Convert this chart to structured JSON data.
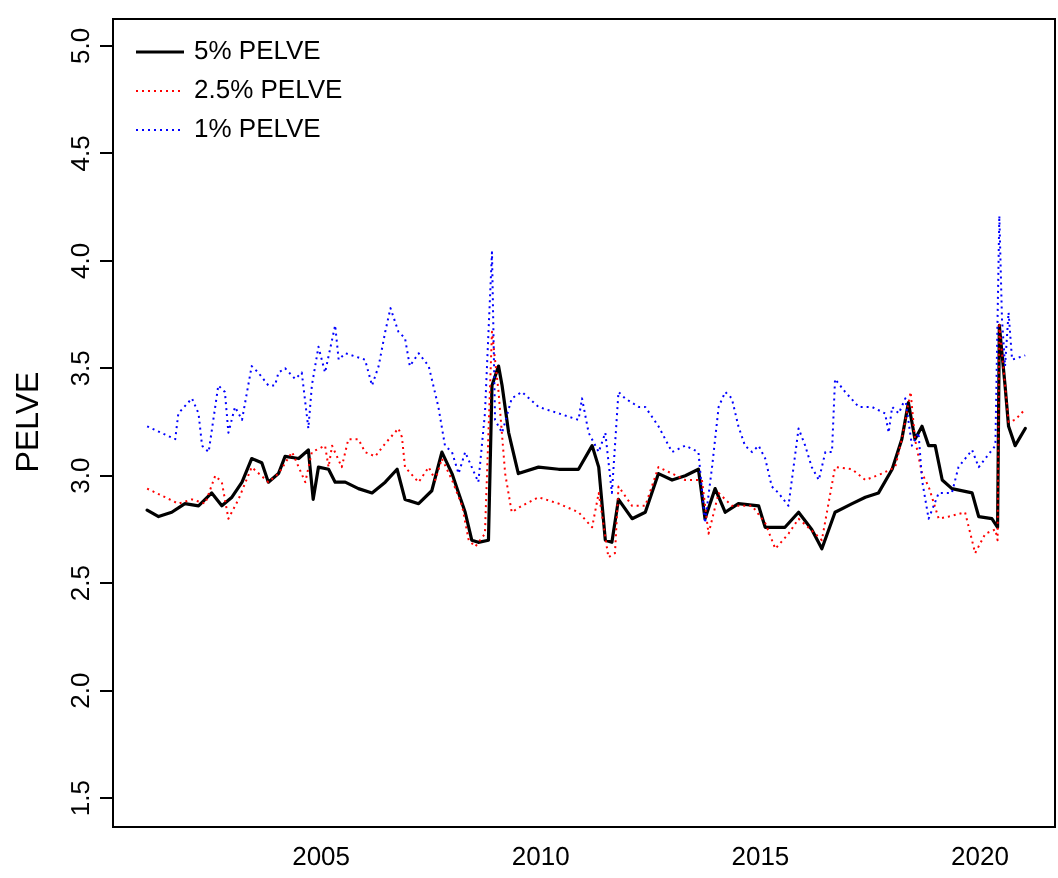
{
  "chart_data": {
    "type": "line",
    "ylabel": "PELVE",
    "xlim": [
      2000.24,
      2021.73
    ],
    "xticks": [
      2005,
      2010,
      2015,
      2020
    ],
    "ylim": [
      1.37,
      5.13
    ],
    "yticks": [
      1.5,
      {
        "value": 2,
        "label": "2.0"
      },
      2.5,
      {
        "value": 3,
        "label": "3.0"
      },
      3.5,
      {
        "value": 4,
        "label": "4.0"
      },
      4.5,
      {
        "value": 5,
        "label": "5.0"
      }
    ],
    "grid": false,
    "legend": "top left",
    "marker": "none",
    "series": [
      {
        "name": "5% PELVE",
        "color": "#000000",
        "line_style": "solid",
        "x": [
          2001.04,
          2001.3,
          2001.6,
          2001.9,
          2002.21,
          2002.51,
          2002.74,
          2002.97,
          2003.2,
          2003.42,
          2003.65,
          2003.8,
          2004.03,
          2004.18,
          2004.49,
          2004.71,
          2004.82,
          2004.94,
          2005.17,
          2005.32,
          2005.55,
          2005.85,
          2006.16,
          2006.46,
          2006.73,
          2006.91,
          2007.22,
          2007.52,
          2007.75,
          2007.98,
          2008.13,
          2008.28,
          2008.43,
          2008.58,
          2008.81,
          2008.89,
          2009.04,
          2009.12,
          2009.27,
          2009.49,
          2009.95,
          2010.41,
          2010.86,
          2011.17,
          2011.32,
          2011.47,
          2011.62,
          2011.77,
          2012.08,
          2012.38,
          2012.68,
          2012.99,
          2013.29,
          2013.59,
          2013.74,
          2013.97,
          2014.2,
          2014.5,
          2014.96,
          2015.11,
          2015.56,
          2015.87,
          2016.17,
          2016.4,
          2016.7,
          2017.09,
          2017.39,
          2017.69,
          2018.0,
          2018.22,
          2018.37,
          2018.52,
          2018.68,
          2018.83,
          2018.98,
          2019.14,
          2019.36,
          2019.82,
          2019.97,
          2020.27,
          2020.4,
          2020.44,
          2020.57,
          2020.65,
          2020.8,
          2021.03
        ],
        "values": [
          2.84,
          2.81,
          2.83,
          2.87,
          2.86,
          2.92,
          2.86,
          2.9,
          2.97,
          3.08,
          3.06,
          2.97,
          3.01,
          3.09,
          3.08,
          3.12,
          2.89,
          3.04,
          3.03,
          2.97,
          2.97,
          2.94,
          2.92,
          2.97,
          3.03,
          2.89,
          2.87,
          2.93,
          3.11,
          3.01,
          2.92,
          2.83,
          2.7,
          2.69,
          2.7,
          3.42,
          3.51,
          3.42,
          3.2,
          3.01,
          3.04,
          3.03,
          3.03,
          3.14,
          3.04,
          2.7,
          2.69,
          2.89,
          2.8,
          2.83,
          3.01,
          2.98,
          3.0,
          3.03,
          2.8,
          2.94,
          2.83,
          2.87,
          2.86,
          2.76,
          2.76,
          2.83,
          2.75,
          2.66,
          2.83,
          2.87,
          2.9,
          2.92,
          3.03,
          3.17,
          3.34,
          3.17,
          3.23,
          3.14,
          3.14,
          2.98,
          2.94,
          2.92,
          2.81,
          2.8,
          2.76,
          3.7,
          3.42,
          3.23,
          3.14,
          3.22
        ]
      },
      {
        "name": "2.5% PELVE",
        "color": "#ff0000",
        "line_style": "dotted",
        "x": [
          2001.04,
          2001.45,
          2001.75,
          2002.06,
          2002.36,
          2002.59,
          2002.74,
          2002.89,
          2003.12,
          2003.42,
          2003.8,
          2004.03,
          2004.34,
          2004.64,
          2004.79,
          2005.09,
          2005.17,
          2005.25,
          2005.47,
          2005.62,
          2005.85,
          2006.0,
          2006.23,
          2006.46,
          2006.76,
          2006.84,
          2006.91,
          2007.22,
          2007.45,
          2007.6,
          2007.75,
          2007.98,
          2008.21,
          2008.36,
          2008.51,
          2008.73,
          2008.89,
          2009.04,
          2009.19,
          2009.34,
          2009.57,
          2009.95,
          2010.41,
          2010.86,
          2011.17,
          2011.32,
          2011.54,
          2011.69,
          2011.77,
          2012.08,
          2012.38,
          2012.68,
          2012.99,
          2013.29,
          2013.67,
          2013.82,
          2014.05,
          2014.35,
          2014.81,
          2015.11,
          2015.34,
          2015.64,
          2015.87,
          2016.25,
          2016.4,
          2016.7,
          2017.09,
          2017.39,
          2017.77,
          2018.07,
          2018.22,
          2018.42,
          2018.52,
          2018.68,
          2018.83,
          2019.06,
          2019.29,
          2019.66,
          2019.89,
          2020.12,
          2020.35,
          2020.4,
          2020.44,
          2020.65,
          2020.8,
          2021.03
        ],
        "values": [
          2.94,
          2.9,
          2.87,
          2.89,
          2.87,
          3.0,
          2.97,
          2.8,
          2.89,
          3.04,
          2.97,
          3.01,
          3.11,
          2.97,
          3.11,
          3.14,
          3.04,
          3.14,
          3.04,
          3.17,
          3.17,
          3.11,
          3.09,
          3.15,
          3.22,
          3.18,
          3.04,
          2.97,
          3.04,
          2.98,
          3.08,
          2.98,
          2.86,
          2.7,
          2.67,
          2.73,
          3.67,
          3.39,
          3.01,
          2.83,
          2.86,
          2.9,
          2.87,
          2.83,
          2.76,
          2.92,
          2.62,
          2.64,
          2.95,
          2.86,
          2.86,
          3.04,
          3.01,
          2.98,
          2.98,
          2.73,
          2.92,
          2.86,
          2.86,
          2.78,
          2.66,
          2.73,
          2.8,
          2.73,
          2.7,
          3.04,
          3.03,
          2.98,
          3.01,
          3.04,
          3.17,
          3.39,
          3.17,
          3.01,
          2.95,
          2.8,
          2.81,
          2.83,
          2.64,
          2.73,
          2.75,
          2.7,
          3.7,
          3.25,
          3.26,
          3.31
        ]
      },
      {
        "name": "1% PELVE",
        "color": "#0000ff",
        "line_style": "dotted",
        "x": [
          2001.04,
          2001.68,
          2001.75,
          2002.06,
          2002.21,
          2002.29,
          2002.44,
          2002.66,
          2002.81,
          2002.89,
          2003.04,
          2003.2,
          2003.42,
          2003.57,
          2003.8,
          2003.95,
          2004.03,
          2004.18,
          2004.41,
          2004.56,
          2004.71,
          2004.79,
          2004.94,
          2005.09,
          2005.32,
          2005.4,
          2005.55,
          2005.85,
          2006.0,
          2006.16,
          2006.31,
          2006.46,
          2006.58,
          2006.76,
          2006.91,
          2007.02,
          2007.22,
          2007.45,
          2007.67,
          2007.82,
          2007.98,
          2008.13,
          2008.28,
          2008.43,
          2008.58,
          2008.73,
          2008.89,
          2008.96,
          2009.12,
          2009.34,
          2009.57,
          2009.95,
          2010.41,
          2010.86,
          2010.94,
          2011.09,
          2011.32,
          2011.47,
          2011.62,
          2011.77,
          2011.92,
          2012.23,
          2012.38,
          2012.68,
          2012.99,
          2013.29,
          2013.59,
          2013.74,
          2013.9,
          2014.05,
          2014.2,
          2014.35,
          2014.5,
          2014.65,
          2014.81,
          2014.96,
          2015.11,
          2015.26,
          2015.41,
          2015.64,
          2015.87,
          2016.02,
          2016.17,
          2016.33,
          2016.48,
          2016.63,
          2016.7,
          2016.93,
          2017.24,
          2017.54,
          2017.84,
          2017.92,
          2018.0,
          2018.15,
          2018.3,
          2018.45,
          2018.6,
          2018.68,
          2018.83,
          2019.06,
          2019.36,
          2019.51,
          2019.82,
          2019.97,
          2020.12,
          2020.35,
          2020.44,
          2020.5,
          2020.57,
          2020.65,
          2020.73,
          2021.03
        ],
        "values": [
          3.23,
          3.17,
          3.29,
          3.36,
          3.29,
          3.14,
          3.11,
          3.42,
          3.39,
          3.2,
          3.32,
          3.26,
          3.51,
          3.48,
          3.42,
          3.42,
          3.48,
          3.5,
          3.45,
          3.48,
          3.22,
          3.42,
          3.6,
          3.48,
          3.7,
          3.54,
          3.57,
          3.55,
          3.54,
          3.42,
          3.51,
          3.67,
          3.78,
          3.67,
          3.64,
          3.51,
          3.57,
          3.51,
          3.32,
          3.14,
          3.11,
          3.01,
          3.11,
          3.04,
          2.97,
          3.29,
          4.04,
          3.26,
          3.2,
          3.36,
          3.39,
          3.32,
          3.29,
          3.26,
          3.36,
          3.2,
          3.11,
          3.2,
          2.92,
          3.39,
          3.36,
          3.32,
          3.32,
          3.23,
          3.11,
          3.14,
          3.11,
          2.78,
          3.04,
          3.32,
          3.39,
          3.36,
          3.23,
          3.14,
          3.11,
          3.14,
          3.08,
          2.95,
          2.92,
          2.86,
          3.22,
          3.14,
          3.04,
          2.98,
          3.11,
          3.11,
          3.45,
          3.39,
          3.32,
          3.32,
          3.29,
          3.2,
          3.32,
          3.29,
          3.36,
          3.14,
          3.2,
          2.98,
          2.8,
          2.92,
          2.92,
          3.04,
          3.12,
          3.04,
          3.08,
          3.14,
          4.21,
          3.73,
          3.51,
          3.76,
          3.54,
          3.56
        ]
      }
    ]
  }
}
